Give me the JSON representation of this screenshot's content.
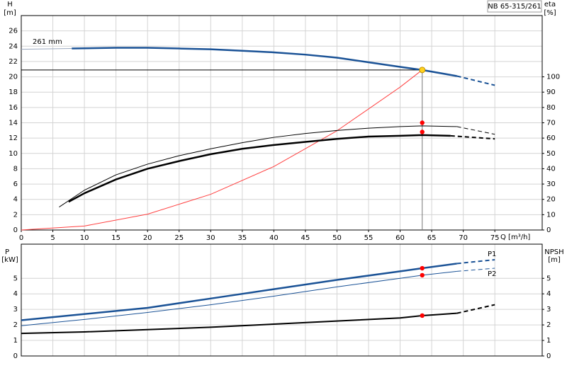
{
  "chart_data": [
    {
      "type": "line",
      "title": "NB 65-315/261",
      "ylabel": "H",
      "yunit": "[m]",
      "y2label": "eta",
      "y2unit": "[%]",
      "xlabel": "Q [m³/h]",
      "annotations": [
        "261 mm"
      ],
      "xlim": [
        0,
        82.5
      ],
      "xticks": [
        0,
        5,
        10,
        15,
        20,
        25,
        30,
        35,
        40,
        45,
        50,
        55,
        60,
        65,
        70,
        75
      ],
      "ylim": [
        0,
        28
      ],
      "yticks": [
        0,
        2,
        4,
        6,
        8,
        10,
        12,
        14,
        16,
        18,
        20,
        22,
        24,
        26
      ],
      "y2lim": [
        0,
        140
      ],
      "y2ticks": [
        0,
        10,
        20,
        30,
        40,
        50,
        60,
        70,
        80,
        90,
        100
      ],
      "grid": true,
      "duty_point": {
        "x": 63.5,
        "y": 20.9,
        "color": "#ffd21f"
      },
      "series": [
        {
          "color": "#9aa8bf",
          "width": 1,
          "x": [
            0,
            8
          ],
          "values": [
            23.6,
            23.7
          ]
        },
        {
          "color": "#1a5296",
          "width": 2.5,
          "x": [
            8,
            15,
            20,
            25,
            30,
            35,
            40,
            45,
            50,
            55,
            60,
            63.5,
            69
          ],
          "values": [
            23.7,
            23.8,
            23.8,
            23.7,
            23.6,
            23.4,
            23.2,
            22.9,
            22.5,
            21.9,
            21.3,
            20.9,
            20.1
          ]
        },
        {
          "color": "#1a5296",
          "width": 2,
          "dash": true,
          "x": [
            69,
            75
          ],
          "values": [
            20.1,
            18.9
          ]
        },
        {
          "color": "#ff4040",
          "width": 1,
          "x": [
            0,
            10,
            20,
            30,
            40,
            50,
            60,
            63.5
          ],
          "values": [
            0,
            0.52,
            2.07,
            4.66,
            8.29,
            12.96,
            18.66,
            20.9
          ]
        },
        {
          "color": "#000000",
          "width": 1,
          "axis": "y2",
          "x": [
            6,
            10,
            15,
            20,
            25,
            30,
            35,
            40,
            45,
            50,
            55,
            60,
            63.5,
            69
          ],
          "values": [
            15,
            26,
            36,
            43,
            48.5,
            53,
            57,
            60.5,
            63,
            65,
            66.5,
            67.5,
            68,
            67.5
          ]
        },
        {
          "color": "#000000",
          "width": 1,
          "dash": true,
          "axis": "y2",
          "x": [
            69,
            75
          ],
          "values": [
            67.5,
            62.5
          ]
        },
        {
          "color": "#000000",
          "width": 2.5,
          "axis": "y2",
          "x": [
            7.5,
            10,
            15,
            20,
            25,
            30,
            35,
            40,
            45,
            50,
            55,
            60,
            63.5,
            68
          ],
          "values": [
            18.4,
            24,
            33,
            40,
            45,
            49.5,
            53,
            55.5,
            57.5,
            59.5,
            61,
            61.5,
            62,
            61.5
          ]
        },
        {
          "color": "#000000",
          "width": 2,
          "dash": true,
          "axis": "y2",
          "x": [
            68,
            75
          ],
          "values": [
            61.5,
            59.5
          ]
        },
        {
          "color": "#ff0000",
          "marker": true,
          "axis": "y2",
          "x": [
            63.5,
            63.5
          ],
          "values": [
            70,
            64
          ]
        }
      ]
    },
    {
      "type": "line",
      "ylabel": "P",
      "yunit": "[kW]",
      "y2label": "NPSH",
      "y2unit": "[m]",
      "annotations": [
        "P1",
        "P2"
      ],
      "xlim": [
        0,
        82.5
      ],
      "ylim": [
        0,
        7.2
      ],
      "yticks": [
        0,
        1,
        2,
        3,
        4,
        5
      ],
      "y2lim": [
        0,
        7.2
      ],
      "y2ticks": [
        0,
        1,
        2,
        3,
        4,
        5
      ],
      "grid": true,
      "series": [
        {
          "color": "#1a5296",
          "width": 2.5,
          "x": [
            0,
            10,
            20,
            30,
            40,
            50,
            60,
            63.5,
            69
          ],
          "values": [
            2.3,
            2.7,
            3.1,
            3.7,
            4.3,
            4.9,
            5.45,
            5.65,
            5.95
          ]
        },
        {
          "color": "#1a5296",
          "width": 2,
          "dash": true,
          "x": [
            69,
            75
          ],
          "values": [
            5.95,
            6.2
          ]
        },
        {
          "color": "#1a5296",
          "width": 1,
          "x": [
            0,
            10,
            20,
            30,
            40,
            50,
            60,
            63.5,
            69
          ],
          "values": [
            1.95,
            2.35,
            2.8,
            3.3,
            3.85,
            4.45,
            5.0,
            5.2,
            5.45
          ]
        },
        {
          "color": "#1a5296",
          "width": 1,
          "dash": true,
          "x": [
            69,
            75
          ],
          "values": [
            5.45,
            5.65
          ]
        },
        {
          "color": "#000000",
          "width": 2,
          "axis": "y2",
          "x": [
            0,
            10,
            20,
            30,
            40,
            50,
            60,
            63.5,
            69
          ],
          "values": [
            1.45,
            1.55,
            1.7,
            1.85,
            2.05,
            2.25,
            2.45,
            2.6,
            2.75
          ]
        },
        {
          "color": "#000000",
          "width": 2,
          "dash": true,
          "axis": "y2",
          "x": [
            69,
            75
          ],
          "values": [
            2.75,
            3.3
          ]
        },
        {
          "color": "#ff0000",
          "marker": true,
          "x": [
            63.5,
            63.5
          ],
          "values": [
            5.65,
            5.2
          ]
        },
        {
          "color": "#ff0000",
          "marker": true,
          "axis": "y2",
          "x": [
            63.5
          ],
          "values": [
            2.6
          ]
        }
      ]
    }
  ]
}
